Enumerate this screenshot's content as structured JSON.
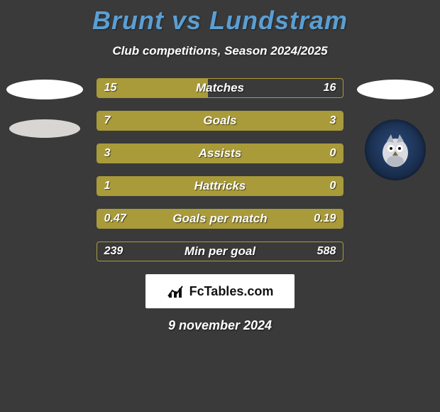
{
  "title": "Brunt vs Lundstram",
  "subtitle": "Club competitions, Season 2024/2025",
  "colors": {
    "background": "#3a3a3a",
    "title": "#5a9fd4",
    "bar_fill": "#a99b3a",
    "bar_border": "#a99b3a",
    "text": "#ffffff"
  },
  "left_badges": {
    "top_oval_color": "#ffffff",
    "bottom_oval_color": "#d8d6d2"
  },
  "right_badges": {
    "top_oval_color": "#ffffff",
    "crest_name": "Oldham Athletic"
  },
  "stats": [
    {
      "label": "Matches",
      "left_text": "15",
      "right_text": "16",
      "left_pct": 45,
      "right_pct": 0
    },
    {
      "label": "Goals",
      "left_text": "7",
      "right_text": "3",
      "left_pct": 68,
      "right_pct": 32
    },
    {
      "label": "Assists",
      "left_text": "3",
      "right_text": "0",
      "left_pct": 100,
      "right_pct": 0
    },
    {
      "label": "Hattricks",
      "left_text": "1",
      "right_text": "0",
      "left_pct": 100,
      "right_pct": 0
    },
    {
      "label": "Goals per match",
      "left_text": "0.47",
      "right_text": "0.19",
      "left_pct": 100,
      "right_pct": 0
    },
    {
      "label": "Min per goal",
      "left_text": "239",
      "right_text": "588",
      "left_pct": 0,
      "right_pct": 0
    }
  ],
  "brand": "FcTables.com",
  "date": "9 november 2024"
}
